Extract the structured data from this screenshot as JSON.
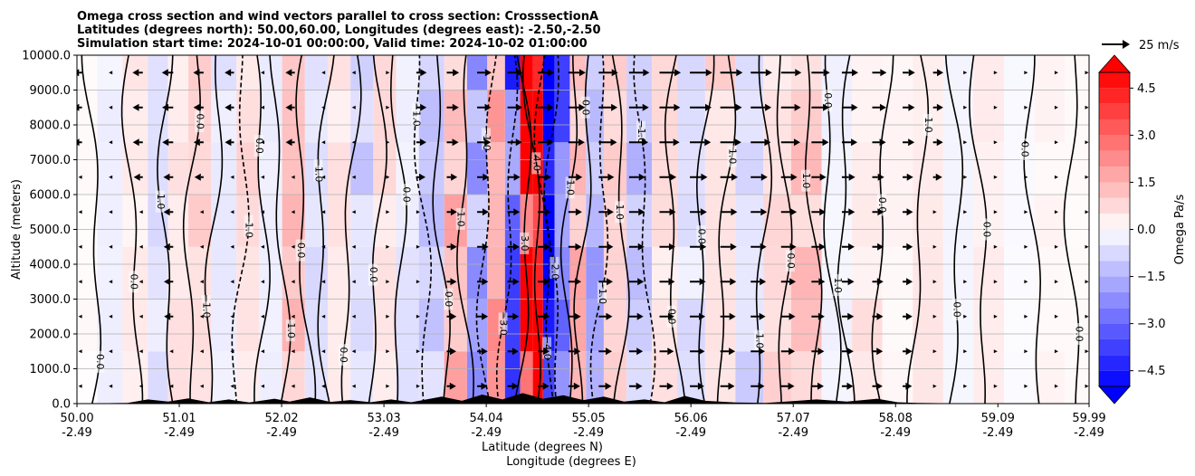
{
  "chart_data": {
    "type": "heatmap",
    "title_lines": [
      "Omega cross section and wind vectors parallel to cross section: CrosssectionA",
      "Latitudes (degrees north): 50.00,60.00, Longitudes (degrees east): -2.50,-2.50",
      "Simulation start time: 2024-10-01 00:00:00, Valid time: 2024-10-02 01:00:00"
    ],
    "xlabel_lines": [
      "Latitude (degrees N)",
      "Longitude (degrees E)"
    ],
    "ylabel": "Altitude (meters)",
    "xlim": [
      50.0,
      59.99
    ],
    "ylim": [
      0,
      10000
    ],
    "x_ticks": [
      {
        "lat": "50.00",
        "lon": "-2.49"
      },
      {
        "lat": "51.01",
        "lon": "-2.49"
      },
      {
        "lat": "52.02",
        "lon": "-2.49"
      },
      {
        "lat": "53.03",
        "lon": "-2.49"
      },
      {
        "lat": "54.04",
        "lon": "-2.49"
      },
      {
        "lat": "55.05",
        "lon": "-2.49"
      },
      {
        "lat": "56.06",
        "lon": "-2.49"
      },
      {
        "lat": "57.07",
        "lon": "-2.49"
      },
      {
        "lat": "58.08",
        "lon": "-2.49"
      },
      {
        "lat": "59.09",
        "lon": "-2.49"
      },
      {
        "lat": "59.99",
        "lon": "-2.49"
      }
    ],
    "y_ticks": [
      "0.0",
      "1000.0",
      "2000.0",
      "3000.0",
      "4000.0",
      "5000.0",
      "6000.0",
      "7000.0",
      "8000.0",
      "9000.0",
      "10000.0"
    ],
    "grid": true,
    "colorbar": {
      "label": "Omega Pa/s",
      "range": [
        -5.0,
        5.0
      ],
      "ticks": [
        "4.5",
        "3.0",
        "1.5",
        "0.0",
        "−1.5",
        "−3.0",
        "−4.5"
      ],
      "extend": "both",
      "high_color": "#ff0000",
      "low_color": "#0000ff"
    },
    "quiver_key": {
      "label": "25 m/s",
      "speed": 25
    },
    "omega_columns": [
      {
        "lat": 50.1,
        "omega": 0.1
      },
      {
        "lat": 50.3,
        "omega": -0.3
      },
      {
        "lat": 50.6,
        "omega": 0.4
      },
      {
        "lat": 50.8,
        "omega": -0.6
      },
      {
        "lat": 51.0,
        "omega": 0.5
      },
      {
        "lat": 51.2,
        "omega": 0.8
      },
      {
        "lat": 51.45,
        "omega": -0.5
      },
      {
        "lat": 51.7,
        "omega": 0.7
      },
      {
        "lat": 51.9,
        "omega": -0.4
      },
      {
        "lat": 52.15,
        "omega": 1.2
      },
      {
        "lat": 52.35,
        "omega": -0.6
      },
      {
        "lat": 52.6,
        "omega": 0.5
      },
      {
        "lat": 52.8,
        "omega": -0.9
      },
      {
        "lat": 53.05,
        "omega": 0.6
      },
      {
        "lat": 53.25,
        "omega": -0.5
      },
      {
        "lat": 53.5,
        "omega": -1.2
      },
      {
        "lat": 53.75,
        "omega": 1.5
      },
      {
        "lat": 53.95,
        "omega": -1.8
      },
      {
        "lat": 54.15,
        "omega": 2.2
      },
      {
        "lat": 54.3,
        "omega": -3.5
      },
      {
        "lat": 54.45,
        "omega": 4.8
      },
      {
        "lat": 54.55,
        "omega": 5.2
      },
      {
        "lat": 54.65,
        "omega": -5.5
      },
      {
        "lat": 54.78,
        "omega": -2.8
      },
      {
        "lat": 54.95,
        "omega": 1.4
      },
      {
        "lat": 55.1,
        "omega": -1.6
      },
      {
        "lat": 55.3,
        "omega": 0.9
      },
      {
        "lat": 55.55,
        "omega": -1.4
      },
      {
        "lat": 55.8,
        "omega": 0.6
      },
      {
        "lat": 56.05,
        "omega": -0.6
      },
      {
        "lat": 56.35,
        "omega": 1.0
      },
      {
        "lat": 56.65,
        "omega": -0.8
      },
      {
        "lat": 56.9,
        "omega": 0.7
      },
      {
        "lat": 57.2,
        "omega": 1.1
      },
      {
        "lat": 57.5,
        "omega": -0.3
      },
      {
        "lat": 57.8,
        "omega": 0.5
      },
      {
        "lat": 58.1,
        "omega": 0.2
      },
      {
        "lat": 58.4,
        "omega": 0.4
      },
      {
        "lat": 58.7,
        "omega": -0.2
      },
      {
        "lat": 59.0,
        "omega": 0.3
      },
      {
        "lat": 59.3,
        "omega": -0.1
      },
      {
        "lat": 59.6,
        "omega": 0.2
      },
      {
        "lat": 59.9,
        "omega": 0.1
      }
    ],
    "contour_lines": [
      {
        "lat": 50.15,
        "style": "solid",
        "label": "0.0"
      },
      {
        "lat": 50.55,
        "style": "solid",
        "label": "0.0"
      },
      {
        "lat": 50.9,
        "style": "solid",
        "label": "1.0"
      },
      {
        "lat": 51.15,
        "style": "solid",
        "label": "0.0"
      },
      {
        "lat": 51.35,
        "style": "solid",
        "label": "−1.0"
      },
      {
        "lat": 51.6,
        "style": "dashed",
        "label": "−1.0"
      },
      {
        "lat": 51.8,
        "style": "solid",
        "label": "0.0"
      },
      {
        "lat": 52.0,
        "style": "solid",
        "label": "1.0"
      },
      {
        "lat": 52.25,
        "style": "solid",
        "label": "0.0"
      },
      {
        "lat": 52.45,
        "style": "solid",
        "label": "−1.0"
      },
      {
        "lat": 52.7,
        "style": "solid",
        "label": "0.0"
      },
      {
        "lat": 52.95,
        "style": "solid",
        "label": "0.0"
      },
      {
        "lat": 53.15,
        "style": "solid",
        "label": "0.0"
      },
      {
        "lat": 53.4,
        "style": "dashed",
        "label": "−1.0"
      },
      {
        "lat": 53.6,
        "style": "solid",
        "label": "0.0"
      },
      {
        "lat": 53.85,
        "style": "solid",
        "label": "1.0"
      },
      {
        "lat": 54.05,
        "style": "dashed",
        "label": "−1.0"
      },
      {
        "lat": 54.25,
        "style": "dashed",
        "label": "−3.0"
      },
      {
        "lat": 54.4,
        "style": "solid",
        "label": "3.0"
      },
      {
        "lat": 54.5,
        "style": "solid",
        "label": "4.0"
      },
      {
        "lat": 54.62,
        "style": "dashed",
        "label": "−4.0"
      },
      {
        "lat": 54.72,
        "style": "dashed",
        "label": "−2.0"
      },
      {
        "lat": 54.88,
        "style": "solid",
        "label": "1.0"
      },
      {
        "lat": 55.0,
        "style": "solid",
        "label": "0.0"
      },
      {
        "lat": 55.15,
        "style": "dashed",
        "label": "−1.0"
      },
      {
        "lat": 55.35,
        "style": "solid",
        "label": "1.0"
      },
      {
        "lat": 55.6,
        "style": "dashed",
        "label": "−1.0"
      },
      {
        "lat": 55.9,
        "style": "solid",
        "label": "0.0"
      },
      {
        "lat": 56.2,
        "style": "solid",
        "label": "0.0"
      },
      {
        "lat": 56.4,
        "style": "solid",
        "label": "1.0"
      },
      {
        "lat": 56.75,
        "style": "solid",
        "label": "1.0"
      },
      {
        "lat": 56.95,
        "style": "solid",
        "label": "0.0"
      },
      {
        "lat": 57.25,
        "style": "solid",
        "label": "1.0"
      },
      {
        "lat": 57.45,
        "style": "solid",
        "label": "0.0"
      },
      {
        "lat": 57.6,
        "style": "solid",
        "label": "1.0"
      },
      {
        "lat": 57.95,
        "style": "solid",
        "label": "0.0"
      },
      {
        "lat": 58.3,
        "style": "solid",
        "label": "1.0"
      },
      {
        "lat": 58.65,
        "style": "solid",
        "label": "0.0"
      },
      {
        "lat": 58.9,
        "style": "solid",
        "label": "0.0"
      },
      {
        "lat": 59.45,
        "style": "solid",
        "label": "0.0"
      },
      {
        "lat": 59.85,
        "style": "solid",
        "label": "0.0"
      }
    ],
    "wind_columns": [
      {
        "lat": 50.05,
        "u": -3
      },
      {
        "lat": 50.35,
        "u": -2
      },
      {
        "lat": 50.65,
        "u": -4
      },
      {
        "lat": 50.95,
        "u": -5
      },
      {
        "lat": 51.25,
        "u": -4
      },
      {
        "lat": 51.55,
        "u": -3
      },
      {
        "lat": 51.85,
        "u": -2
      },
      {
        "lat": 52.15,
        "u": -3
      },
      {
        "lat": 52.45,
        "u": -2
      },
      {
        "lat": 52.75,
        "u": -1
      },
      {
        "lat": 53.05,
        "u": 2
      },
      {
        "lat": 53.35,
        "u": 4
      },
      {
        "lat": 53.65,
        "u": 6
      },
      {
        "lat": 53.95,
        "u": 8
      },
      {
        "lat": 54.25,
        "u": 9
      },
      {
        "lat": 54.55,
        "u": 10
      },
      {
        "lat": 54.85,
        "u": 11
      },
      {
        "lat": 55.15,
        "u": 13
      },
      {
        "lat": 55.45,
        "u": 14
      },
      {
        "lat": 55.75,
        "u": 15
      },
      {
        "lat": 56.05,
        "u": 16
      },
      {
        "lat": 56.35,
        "u": 16
      },
      {
        "lat": 56.65,
        "u": 15
      },
      {
        "lat": 56.95,
        "u": 14
      },
      {
        "lat": 57.25,
        "u": 12
      },
      {
        "lat": 57.55,
        "u": 10
      },
      {
        "lat": 57.85,
        "u": 8
      },
      {
        "lat": 58.15,
        "u": 6
      },
      {
        "lat": 58.45,
        "u": 4
      },
      {
        "lat": 58.75,
        "u": 2
      },
      {
        "lat": 59.05,
        "u": 1
      },
      {
        "lat": 59.35,
        "u": 1
      },
      {
        "lat": 59.65,
        "u": 0.5
      },
      {
        "lat": 59.95,
        "u": 0.5
      }
    ],
    "wind_levels": [
      500,
      1500,
      2500,
      3500,
      4500,
      5500,
      6500,
      7500,
      8500,
      9500
    ],
    "terrain": [
      {
        "lat": 50.0,
        "h": 0
      },
      {
        "lat": 50.5,
        "h": 20
      },
      {
        "lat": 50.7,
        "h": 120
      },
      {
        "lat": 50.9,
        "h": 60
      },
      {
        "lat": 51.1,
        "h": 150
      },
      {
        "lat": 51.3,
        "h": 40
      },
      {
        "lat": 51.5,
        "h": 120
      },
      {
        "lat": 51.7,
        "h": 30
      },
      {
        "lat": 51.95,
        "h": 140
      },
      {
        "lat": 52.1,
        "h": 60
      },
      {
        "lat": 52.3,
        "h": 180
      },
      {
        "lat": 52.5,
        "h": 50
      },
      {
        "lat": 52.7,
        "h": 100
      },
      {
        "lat": 52.9,
        "h": 40
      },
      {
        "lat": 53.1,
        "h": 120
      },
      {
        "lat": 53.3,
        "h": 40
      },
      {
        "lat": 53.6,
        "h": 200
      },
      {
        "lat": 53.8,
        "h": 80
      },
      {
        "lat": 54.0,
        "h": 260
      },
      {
        "lat": 54.2,
        "h": 120
      },
      {
        "lat": 54.4,
        "h": 300
      },
      {
        "lat": 54.6,
        "h": 140
      },
      {
        "lat": 54.8,
        "h": 240
      },
      {
        "lat": 55.0,
        "h": 100
      },
      {
        "lat": 55.2,
        "h": 200
      },
      {
        "lat": 55.4,
        "h": 60
      },
      {
        "lat": 55.6,
        "h": 120
      },
      {
        "lat": 55.8,
        "h": 40
      },
      {
        "lat": 56.0,
        "h": 220
      },
      {
        "lat": 56.2,
        "h": 80
      },
      {
        "lat": 56.5,
        "h": 30
      },
      {
        "lat": 56.8,
        "h": 20
      },
      {
        "lat": 57.0,
        "h": 60
      },
      {
        "lat": 57.3,
        "h": 120
      },
      {
        "lat": 57.6,
        "h": 60
      },
      {
        "lat": 57.9,
        "h": 140
      },
      {
        "lat": 58.1,
        "h": 40
      },
      {
        "lat": 58.3,
        "h": 20
      },
      {
        "lat": 58.6,
        "h": 10
      },
      {
        "lat": 59.0,
        "h": 0
      },
      {
        "lat": 59.99,
        "h": 0
      }
    ]
  }
}
